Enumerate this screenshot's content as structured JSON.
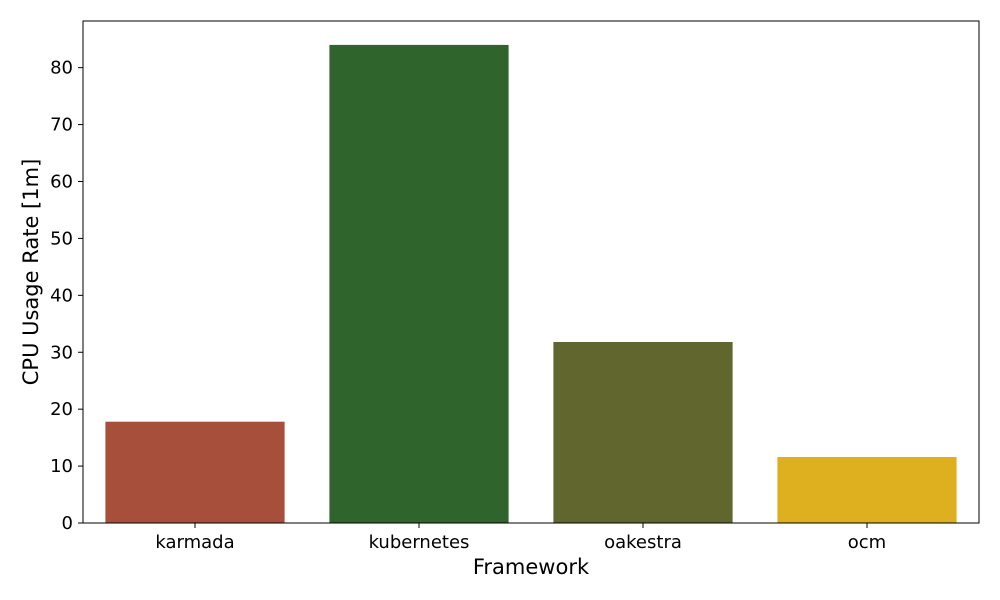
{
  "chart_data": {
    "type": "bar",
    "title": "",
    "xlabel": "Framework",
    "ylabel": "CPU Usage Rate [1m]",
    "categories": [
      "karmada",
      "kubernetes",
      "oakestra",
      "ocm"
    ],
    "values": [
      17.8,
      84.0,
      31.8,
      11.6
    ],
    "colors": [
      "#a84f3c",
      "#2f652c",
      "#60662d",
      "#deb020"
    ],
    "ylim": [
      0,
      88.2
    ],
    "yticks": [
      0,
      10,
      20,
      30,
      40,
      50,
      60,
      70,
      80
    ],
    "grid": false,
    "legend": "none"
  }
}
